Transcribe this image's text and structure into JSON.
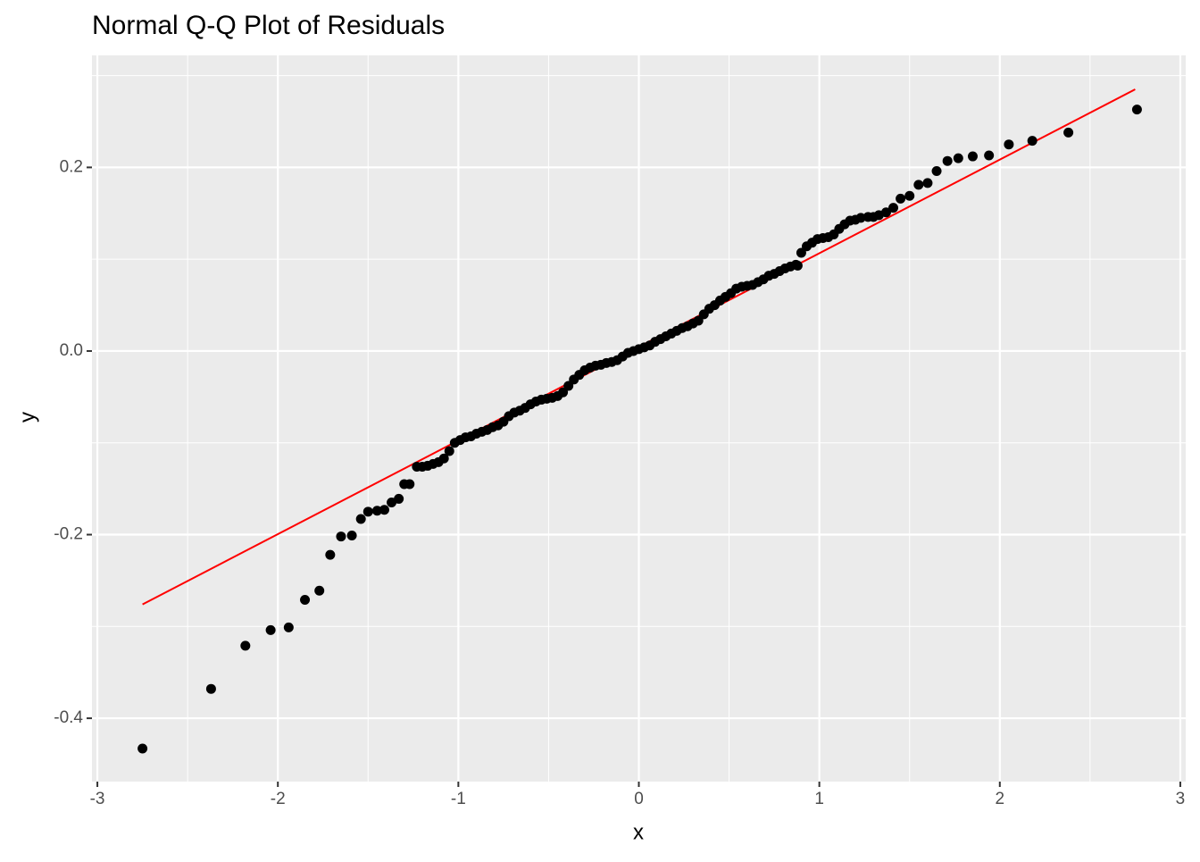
{
  "chart_data": {
    "type": "scatter",
    "title": "Normal Q-Q Plot of Residuals",
    "x_label": "x",
    "y_label": "y",
    "x": [
      -2.75,
      -2.37,
      -2.18,
      -2.04,
      -1.94,
      -1.85,
      -1.77,
      -1.71,
      -1.65,
      -1.59,
      -1.54,
      -1.5,
      -1.45,
      -1.41,
      -1.37,
      -1.33,
      -1.3,
      -1.27,
      -1.23,
      -1.2,
      -1.17,
      -1.14,
      -1.11,
      -1.08,
      -1.05,
      -1.02,
      -0.99,
      -0.96,
      -0.93,
      -0.9,
      -0.87,
      -0.84,
      -0.81,
      -0.78,
      -0.75,
      -0.72,
      -0.69,
      -0.66,
      -0.63,
      -0.6,
      -0.57,
      -0.54,
      -0.51,
      -0.48,
      -0.45,
      -0.42,
      -0.39,
      -0.36,
      -0.33,
      -0.3,
      -0.27,
      -0.24,
      -0.21,
      -0.18,
      -0.15,
      -0.12,
      -0.09,
      -0.06,
      -0.03,
      0,
      0.03,
      0.06,
      0.09,
      0.12,
      0.15,
      0.18,
      0.21,
      0.24,
      0.27,
      0.3,
      0.33,
      0.36,
      0.39,
      0.42,
      0.45,
      0.48,
      0.51,
      0.54,
      0.57,
      0.6,
      0.63,
      0.66,
      0.69,
      0.72,
      0.75,
      0.78,
      0.81,
      0.84,
      0.87,
      0.88,
      0.9,
      0.93,
      0.96,
      0.99,
      1.02,
      1.05,
      1.08,
      1.11,
      1.14,
      1.17,
      1.2,
      1.23,
      1.27,
      1.3,
      1.33,
      1.37,
      1.41,
      1.45,
      1.5,
      1.55,
      1.6,
      1.65,
      1.71,
      1.77,
      1.85,
      1.94,
      2.05,
      2.18,
      2.38,
      2.76
    ],
    "y": [
      -0.433,
      -0.368,
      -0.321,
      -0.304,
      -0.301,
      -0.271,
      -0.261,
      -0.222,
      -0.202,
      -0.201,
      -0.183,
      -0.175,
      -0.174,
      -0.173,
      -0.165,
      -0.161,
      -0.145,
      -0.145,
      -0.126,
      -0.126,
      -0.125,
      -0.123,
      -0.121,
      -0.117,
      -0.109,
      -0.1,
      -0.097,
      -0.094,
      -0.093,
      -0.09,
      -0.088,
      -0.086,
      -0.083,
      -0.081,
      -0.077,
      -0.071,
      -0.067,
      -0.065,
      -0.062,
      -0.058,
      -0.055,
      -0.053,
      -0.052,
      -0.051,
      -0.049,
      -0.045,
      -0.038,
      -0.031,
      -0.026,
      -0.021,
      -0.018,
      -0.016,
      -0.015,
      -0.013,
      -0.012,
      -0.01,
      -0.006,
      -0.002,
      0,
      0.002,
      0.004,
      0.006,
      0.01,
      0.013,
      0.016,
      0.019,
      0.022,
      0.025,
      0.027,
      0.03,
      0.033,
      0.04,
      0.046,
      0.05,
      0.055,
      0.059,
      0.063,
      0.068,
      0.07,
      0.071,
      0.072,
      0.075,
      0.078,
      0.082,
      0.084,
      0.087,
      0.09,
      0.092,
      0.094,
      0.093,
      0.107,
      0.114,
      0.118,
      0.122,
      0.123,
      0.124,
      0.127,
      0.133,
      0.138,
      0.142,
      0.143,
      0.145,
      0.146,
      0.146,
      0.148,
      0.151,
      0.156,
      0.166,
      0.169,
      0.181,
      0.183,
      0.196,
      0.207,
      0.21,
      0.212,
      0.213,
      0.225,
      0.229,
      0.238,
      0.263
    ],
    "color": "#000000",
    "reference_line": {
      "x": [
        -2.75,
        2.75
      ],
      "y": [
        -0.276,
        0.285
      ],
      "color": "#ff0000"
    },
    "xlim": [
      -3.03,
      3.03
    ],
    "ylim": [
      -0.469,
      0.322
    ],
    "xticks": [
      -3,
      -2,
      -1,
      0,
      1,
      2,
      3
    ],
    "yticks": [
      -0.4,
      -0.2,
      {
        "value": 0,
        "label": "0.0"
      },
      0.2
    ],
    "x_minor_grid": [
      -2.5,
      -1.5,
      -0.5,
      0.5,
      1.5,
      2.5
    ],
    "y_minor_grid": [
      -0.3,
      -0.1,
      0.1,
      0.3
    ],
    "grid": true
  }
}
